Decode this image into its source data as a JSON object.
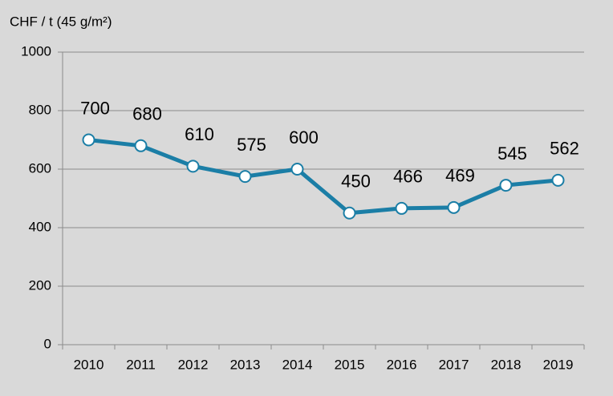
{
  "chart_data": {
    "type": "line",
    "y_axis_label": "CHF / t (45 g/m²)",
    "categories": [
      "2010",
      "2011",
      "2012",
      "2013",
      "2014",
      "2015",
      "2016",
      "2017",
      "2018",
      "2019"
    ],
    "values": [
      700,
      680,
      610,
      575,
      600,
      450,
      466,
      469,
      545,
      562
    ],
    "color": "#1b7ea6",
    "marker_fill": "#ffffff",
    "ylim": [
      0,
      1000
    ],
    "yticks": [
      0,
      200,
      400,
      600,
      800,
      1000
    ],
    "grid": true
  }
}
